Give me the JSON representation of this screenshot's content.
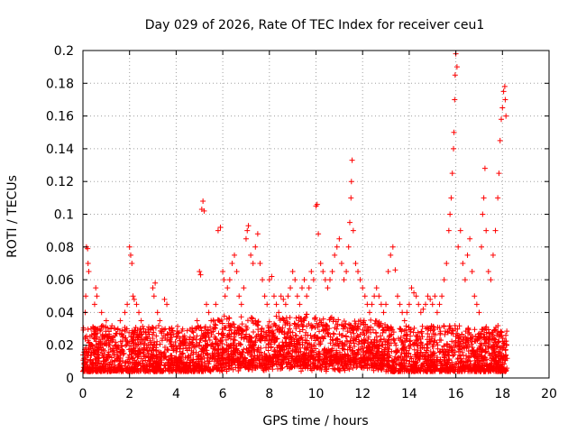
{
  "chart_data": {
    "type": "scatter",
    "title": "Day 029 of 2026, Rate Of TEC Index for receiver ceu1",
    "xlabel": "GPS time / hours",
    "ylabel": "ROTI / TECUs",
    "xlim": [
      0,
      20
    ],
    "ylim": [
      0,
      0.2
    ],
    "xticks": [
      "0",
      "2",
      "4",
      "6",
      "8",
      "10",
      "12",
      "14",
      "16",
      "18",
      "20"
    ],
    "yticks": [
      "0",
      "0.02",
      "0.04",
      "0.06",
      "0.08",
      "0.1",
      "0.12",
      "0.14",
      "0.16",
      "0.18",
      "0.2"
    ],
    "grid": true,
    "marker": "+",
    "series": [
      {
        "name": "ROTI",
        "color": "#ff0000",
        "points": [
          [
            0.05,
            0.012
          ],
          [
            0.1,
            0.04
          ],
          [
            0.12,
            0.05
          ],
          [
            0.15,
            0.08
          ],
          [
            0.2,
            0.079
          ],
          [
            0.22,
            0.07
          ],
          [
            0.25,
            0.065
          ],
          [
            0.3,
            0.02
          ],
          [
            0.35,
            0.03
          ],
          [
            0.4,
            0.02
          ],
          [
            0.5,
            0.045
          ],
          [
            0.55,
            0.055
          ],
          [
            0.6,
            0.05
          ],
          [
            0.7,
            0.03
          ],
          [
            0.8,
            0.04
          ],
          [
            0.9,
            0.025
          ],
          [
            1.0,
            0.035
          ],
          [
            1.1,
            0.02
          ],
          [
            1.2,
            0.03
          ],
          [
            1.3,
            0.025
          ],
          [
            1.4,
            0.02
          ],
          [
            1.5,
            0.03
          ],
          [
            1.6,
            0.035
          ],
          [
            1.7,
            0.025
          ],
          [
            1.8,
            0.04
          ],
          [
            1.9,
            0.045
          ],
          [
            2.0,
            0.08
          ],
          [
            2.05,
            0.075
          ],
          [
            2.1,
            0.07
          ],
          [
            2.15,
            0.05
          ],
          [
            2.2,
            0.048
          ],
          [
            2.3,
            0.045
          ],
          [
            2.4,
            0.04
          ],
          [
            2.5,
            0.035
          ],
          [
            2.6,
            0.03
          ],
          [
            2.7,
            0.025
          ],
          [
            2.8,
            0.02
          ],
          [
            2.9,
            0.03
          ],
          [
            3.0,
            0.055
          ],
          [
            3.05,
            0.05
          ],
          [
            3.1,
            0.058
          ],
          [
            3.2,
            0.04
          ],
          [
            3.3,
            0.035
          ],
          [
            3.4,
            0.03
          ],
          [
            3.5,
            0.048
          ],
          [
            3.6,
            0.045
          ],
          [
            3.7,
            0.03
          ],
          [
            3.8,
            0.025
          ],
          [
            3.9,
            0.02
          ],
          [
            4.0,
            0.025
          ],
          [
            4.2,
            0.02
          ],
          [
            4.4,
            0.022
          ],
          [
            4.6,
            0.025
          ],
          [
            4.8,
            0.03
          ],
          [
            4.9,
            0.035
          ],
          [
            5.0,
            0.065
          ],
          [
            5.05,
            0.063
          ],
          [
            5.1,
            0.103
          ],
          [
            5.15,
            0.108
          ],
          [
            5.2,
            0.102
          ],
          [
            5.3,
            0.045
          ],
          [
            5.4,
            0.04
          ],
          [
            5.5,
            0.035
          ],
          [
            5.6,
            0.03
          ],
          [
            5.7,
            0.045
          ],
          [
            5.8,
            0.09
          ],
          [
            5.9,
            0.092
          ],
          [
            6.0,
            0.065
          ],
          [
            6.05,
            0.06
          ],
          [
            6.1,
            0.05
          ],
          [
            6.2,
            0.055
          ],
          [
            6.3,
            0.06
          ],
          [
            6.4,
            0.07
          ],
          [
            6.5,
            0.075
          ],
          [
            6.6,
            0.065
          ],
          [
            6.7,
            0.05
          ],
          [
            6.8,
            0.045
          ],
          [
            6.9,
            0.055
          ],
          [
            7.0,
            0.085
          ],
          [
            7.05,
            0.09
          ],
          [
            7.1,
            0.093
          ],
          [
            7.2,
            0.075
          ],
          [
            7.3,
            0.07
          ],
          [
            7.4,
            0.08
          ],
          [
            7.5,
            0.088
          ],
          [
            7.6,
            0.07
          ],
          [
            7.7,
            0.06
          ],
          [
            7.8,
            0.05
          ],
          [
            7.9,
            0.045
          ],
          [
            8.0,
            0.06
          ],
          [
            8.1,
            0.062
          ],
          [
            8.2,
            0.05
          ],
          [
            8.3,
            0.045
          ],
          [
            8.4,
            0.04
          ],
          [
            8.5,
            0.05
          ],
          [
            8.6,
            0.048
          ],
          [
            8.7,
            0.045
          ],
          [
            8.8,
            0.05
          ],
          [
            8.9,
            0.055
          ],
          [
            9.0,
            0.065
          ],
          [
            9.1,
            0.06
          ],
          [
            9.2,
            0.05
          ],
          [
            9.3,
            0.045
          ],
          [
            9.4,
            0.055
          ],
          [
            9.5,
            0.06
          ],
          [
            9.6,
            0.05
          ],
          [
            9.7,
            0.055
          ],
          [
            9.8,
            0.065
          ],
          [
            9.9,
            0.06
          ],
          [
            10.0,
            0.105
          ],
          [
            10.05,
            0.106
          ],
          [
            10.1,
            0.088
          ],
          [
            10.2,
            0.07
          ],
          [
            10.3,
            0.065
          ],
          [
            10.4,
            0.06
          ],
          [
            10.5,
            0.055
          ],
          [
            10.6,
            0.06
          ],
          [
            10.7,
            0.065
          ],
          [
            10.8,
            0.075
          ],
          [
            10.9,
            0.08
          ],
          [
            11.0,
            0.085
          ],
          [
            11.1,
            0.07
          ],
          [
            11.2,
            0.06
          ],
          [
            11.3,
            0.065
          ],
          [
            11.4,
            0.08
          ],
          [
            11.45,
            0.095
          ],
          [
            11.5,
            0.11
          ],
          [
            11.52,
            0.12
          ],
          [
            11.55,
            0.133
          ],
          [
            11.6,
            0.09
          ],
          [
            11.7,
            0.07
          ],
          [
            11.8,
            0.065
          ],
          [
            11.9,
            0.06
          ],
          [
            12.0,
            0.055
          ],
          [
            12.1,
            0.05
          ],
          [
            12.2,
            0.045
          ],
          [
            12.3,
            0.04
          ],
          [
            12.4,
            0.045
          ],
          [
            12.5,
            0.05
          ],
          [
            12.6,
            0.055
          ],
          [
            12.7,
            0.05
          ],
          [
            12.8,
            0.045
          ],
          [
            12.9,
            0.04
          ],
          [
            13.0,
            0.045
          ],
          [
            13.1,
            0.065
          ],
          [
            13.2,
            0.075
          ],
          [
            13.3,
            0.08
          ],
          [
            13.4,
            0.066
          ],
          [
            13.5,
            0.05
          ],
          [
            13.6,
            0.045
          ],
          [
            13.7,
            0.04
          ],
          [
            13.8,
            0.035
          ],
          [
            13.9,
            0.04
          ],
          [
            14.0,
            0.045
          ],
          [
            14.1,
            0.055
          ],
          [
            14.2,
            0.052
          ],
          [
            14.3,
            0.05
          ],
          [
            14.4,
            0.045
          ],
          [
            14.5,
            0.04
          ],
          [
            14.6,
            0.042
          ],
          [
            14.7,
            0.045
          ],
          [
            14.8,
            0.05
          ],
          [
            14.9,
            0.048
          ],
          [
            15.0,
            0.045
          ],
          [
            15.1,
            0.05
          ],
          [
            15.2,
            0.04
          ],
          [
            15.3,
            0.045
          ],
          [
            15.4,
            0.05
          ],
          [
            15.5,
            0.06
          ],
          [
            15.6,
            0.07
          ],
          [
            15.7,
            0.09
          ],
          [
            15.75,
            0.1
          ],
          [
            15.8,
            0.11
          ],
          [
            15.85,
            0.125
          ],
          [
            15.9,
            0.14
          ],
          [
            15.92,
            0.15
          ],
          [
            15.95,
            0.17
          ],
          [
            15.97,
            0.185
          ],
          [
            16.0,
            0.198
          ],
          [
            16.05,
            0.19
          ],
          [
            16.1,
            0.08
          ],
          [
            16.2,
            0.09
          ],
          [
            16.3,
            0.07
          ],
          [
            16.4,
            0.06
          ],
          [
            16.5,
            0.075
          ],
          [
            16.6,
            0.085
          ],
          [
            16.7,
            0.065
          ],
          [
            16.8,
            0.05
          ],
          [
            16.9,
            0.045
          ],
          [
            17.0,
            0.04
          ],
          [
            17.1,
            0.08
          ],
          [
            17.15,
            0.1
          ],
          [
            17.2,
            0.11
          ],
          [
            17.25,
            0.128
          ],
          [
            17.3,
            0.09
          ],
          [
            17.4,
            0.065
          ],
          [
            17.5,
            0.06
          ],
          [
            17.6,
            0.075
          ],
          [
            17.7,
            0.09
          ],
          [
            17.8,
            0.11
          ],
          [
            17.85,
            0.125
          ],
          [
            17.9,
            0.145
          ],
          [
            17.95,
            0.158
          ],
          [
            18.0,
            0.165
          ],
          [
            18.05,
            0.175
          ],
          [
            18.1,
            0.178
          ],
          [
            18.12,
            0.17
          ],
          [
            18.15,
            0.16
          ],
          [
            18.18,
            0.02
          ],
          [
            18.2,
            0.012
          ]
        ]
      }
    ]
  }
}
